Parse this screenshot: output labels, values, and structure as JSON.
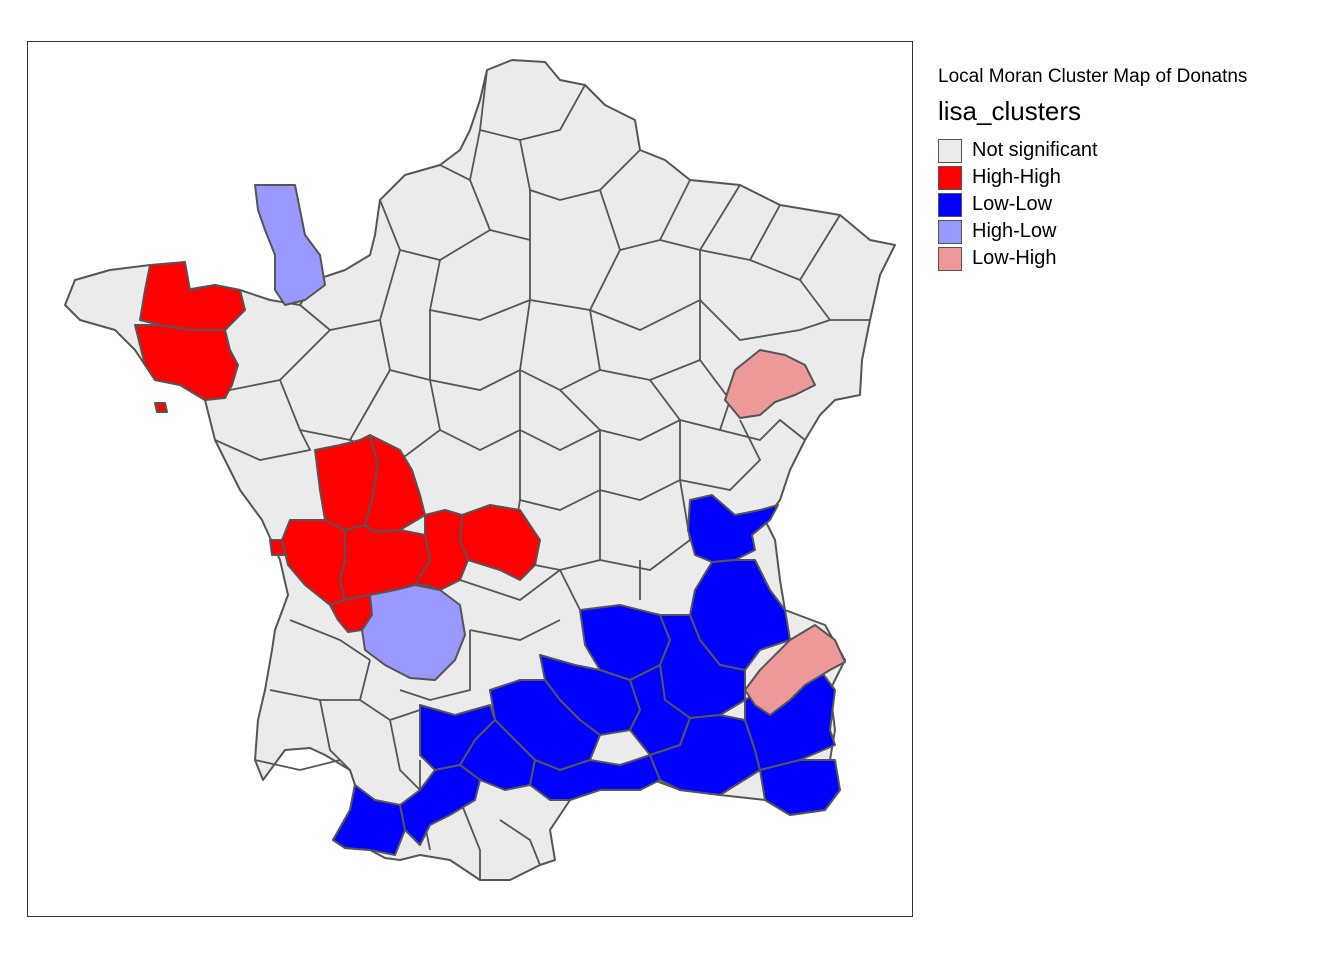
{
  "map": {
    "title": "Local Moran Cluster Map of Donatns",
    "variable": "lisa_clusters",
    "legend": [
      {
        "label": "Not significant",
        "color": "#EBEBEB"
      },
      {
        "label": "High-High",
        "color": "#FF0000"
      },
      {
        "label": "Low-Low",
        "color": "#0000FF"
      },
      {
        "label": "High-Low",
        "color": "#9999FF"
      },
      {
        "label": "Low-High",
        "color": "#EE9999"
      }
    ],
    "base_color": "#EBEBEB",
    "border_color": "#555555"
  }
}
